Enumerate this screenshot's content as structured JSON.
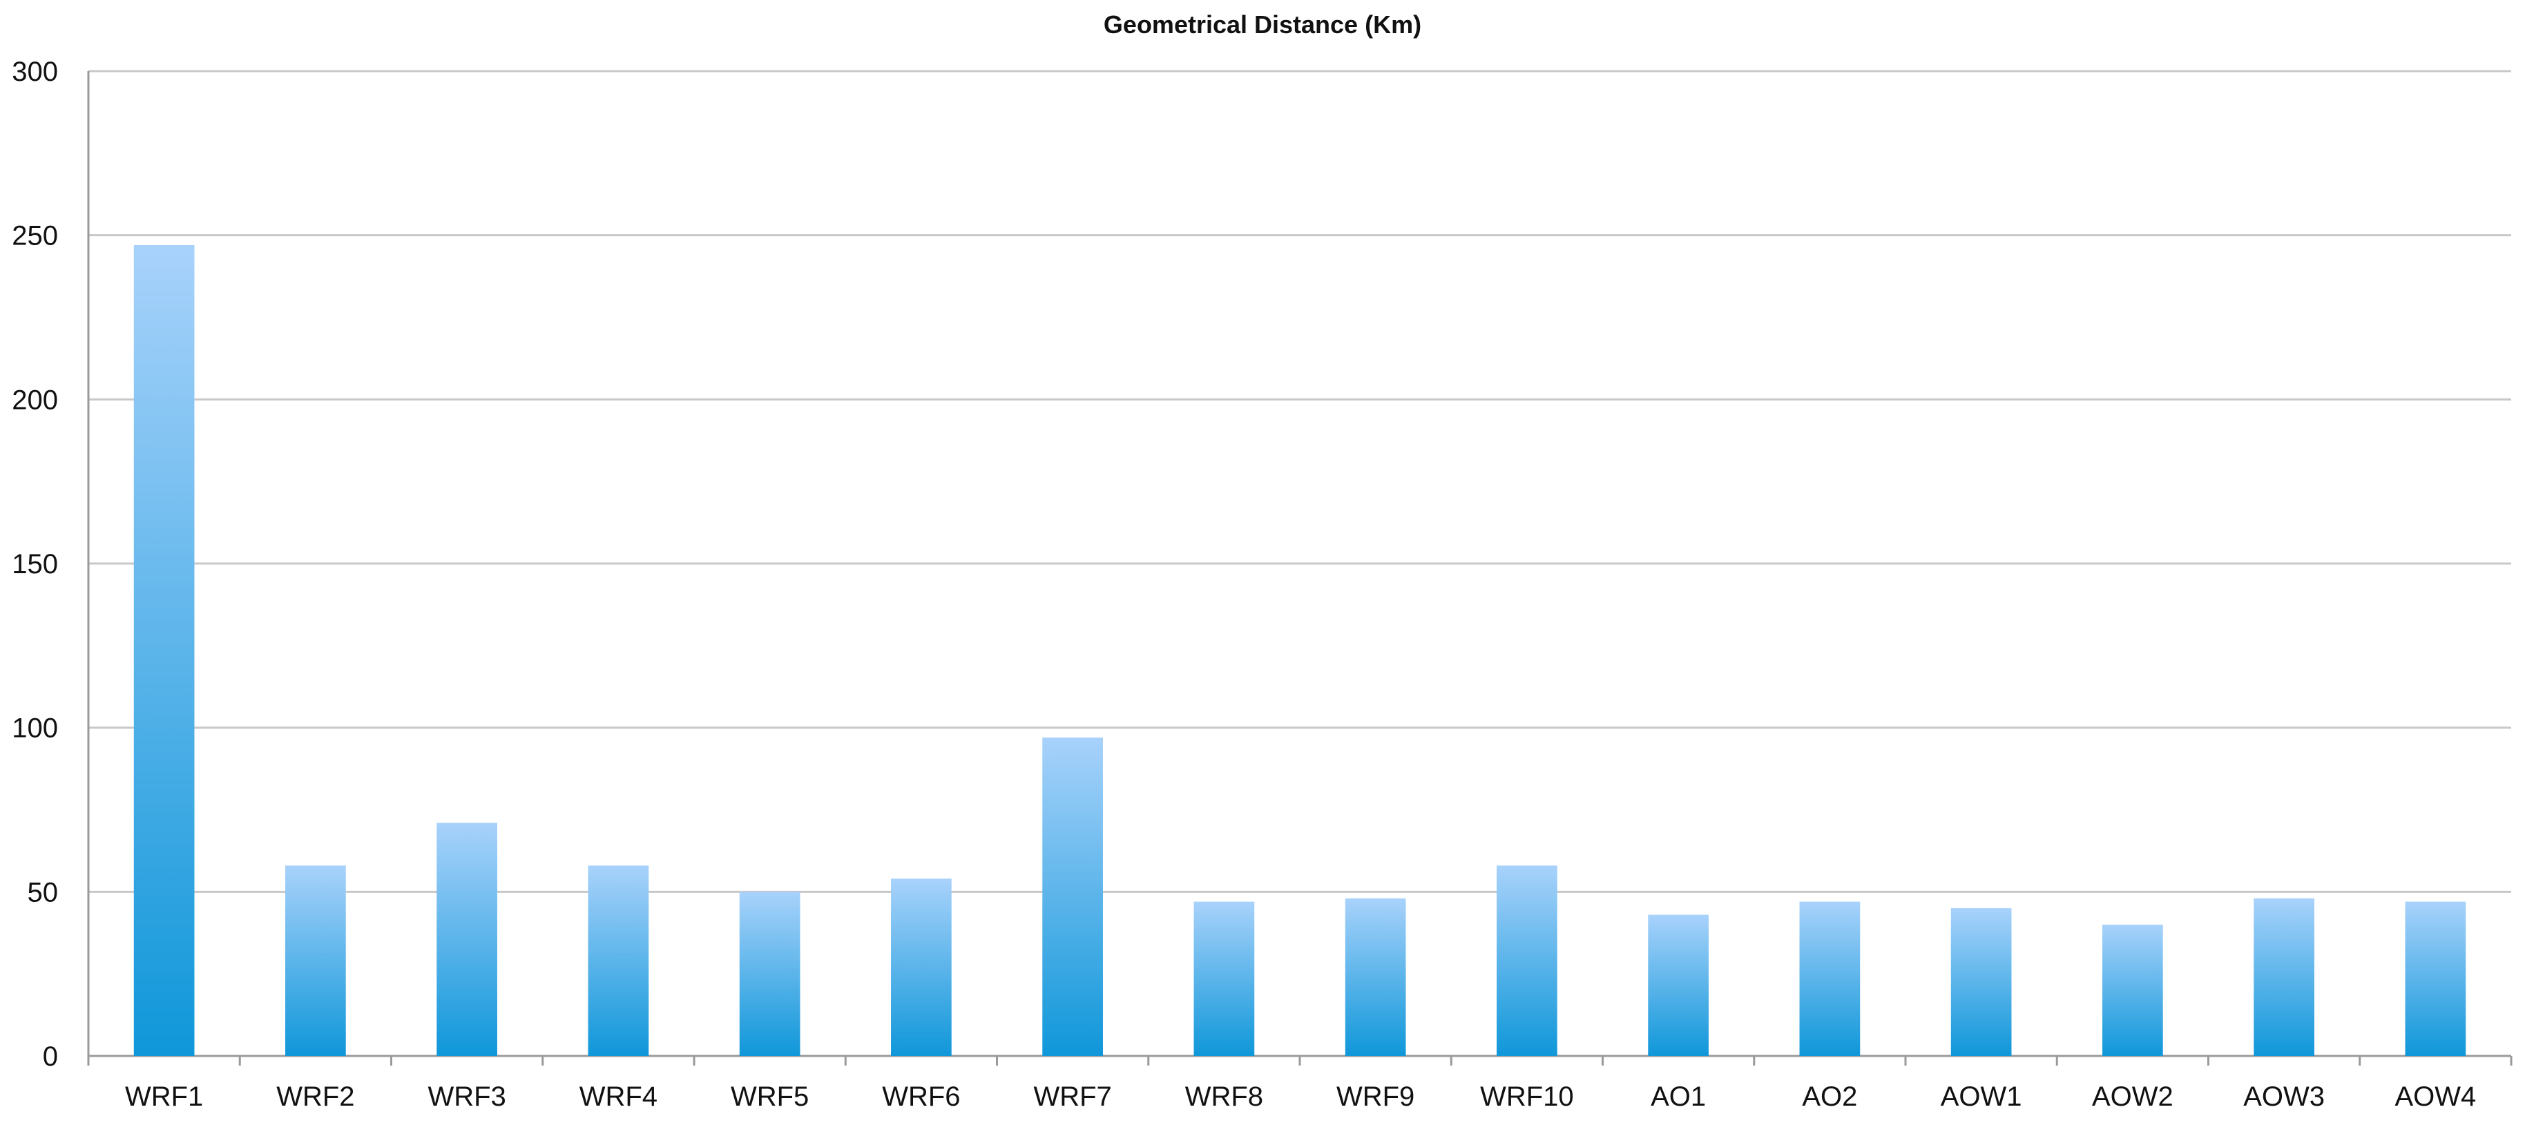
{
  "chart_data": {
    "type": "bar",
    "title": "Geometrical Distance (Km)",
    "xlabel": "",
    "ylabel": "",
    "categories": [
      "WRF1",
      "WRF2",
      "WRF3",
      "WRF4",
      "WRF5",
      "WRF6",
      "WRF7",
      "WRF8",
      "WRF9",
      "WRF10",
      "AO1",
      "AO2",
      "AOW1",
      "AOW2",
      "AOW3",
      "AOW4"
    ],
    "values": [
      247,
      58,
      71,
      58,
      50,
      54,
      97,
      47,
      48,
      58,
      43,
      47,
      45,
      40,
      48,
      47
    ],
    "ylim": [
      0,
      300
    ],
    "yticks": [
      0,
      50,
      100,
      150,
      200,
      250,
      300
    ],
    "grid": true,
    "legend": "none",
    "colors": {
      "bar_top": "#a8d2fb",
      "bar_bottom": "#0f97d9",
      "grid": "#c8c8c8",
      "axis": "#9a9a9a",
      "text": "#111111"
    }
  }
}
